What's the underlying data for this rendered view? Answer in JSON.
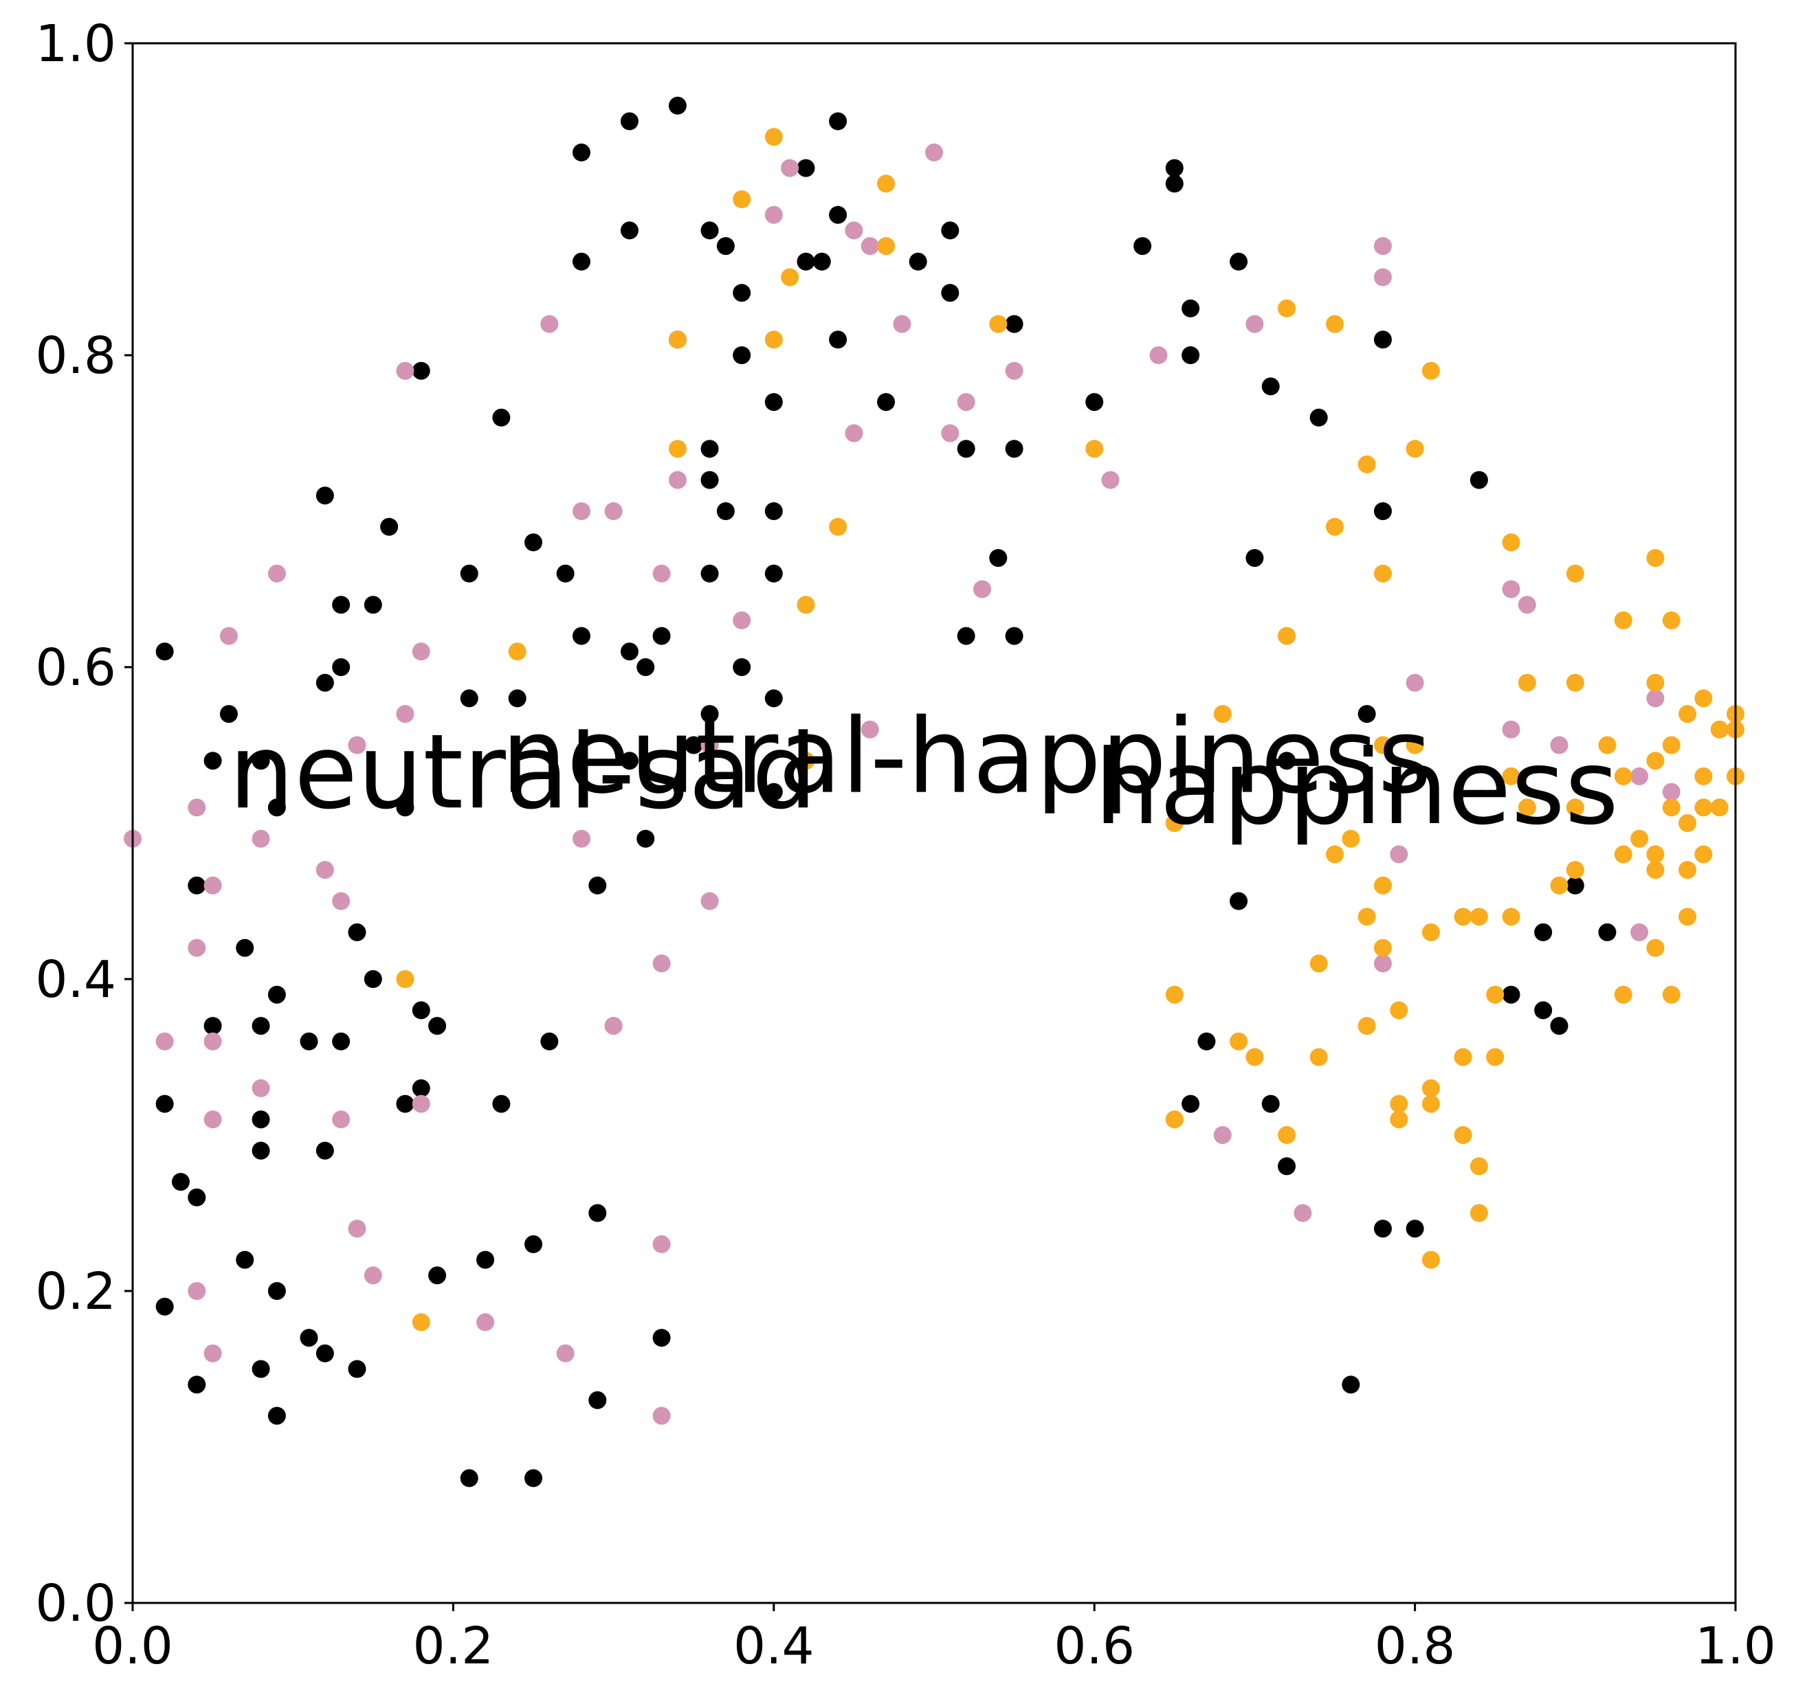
{
  "chart_data": {
    "type": "scatter",
    "title": "",
    "xlabel": "",
    "ylabel": "",
    "xlim": [
      0.0,
      1.0
    ],
    "ylim": [
      0.0,
      1.0
    ],
    "grid": false,
    "legend": "none",
    "x_ticks": [
      "0.0",
      "0.2",
      "0.4",
      "0.6",
      "0.8",
      "1.0"
    ],
    "y_ticks": [
      "0.0",
      "0.2",
      "0.4",
      "0.6",
      "0.8",
      "1.0"
    ],
    "annotations": [
      {
        "text": "neutral-sad",
        "x": 0.06,
        "y": 0.51
      },
      {
        "text": "neutral-happiness",
        "x": 0.23,
        "y": 0.52
      },
      {
        "text": "happiness",
        "x": 0.6,
        "y": 0.5
      }
    ],
    "series": [
      {
        "color": "#000000",
        "points": [
          [
            0.02,
            0.61
          ],
          [
            0.04,
            0.46
          ],
          [
            0.05,
            0.37
          ],
          [
            0.06,
            0.57
          ],
          [
            0.08,
            0.54
          ],
          [
            0.07,
            0.42
          ],
          [
            0.08,
            0.37
          ],
          [
            0.09,
            0.39
          ],
          [
            0.08,
            0.31
          ],
          [
            0.08,
            0.29
          ],
          [
            0.02,
            0.19
          ],
          [
            0.04,
            0.26
          ],
          [
            0.03,
            0.27
          ],
          [
            0.02,
            0.32
          ],
          [
            0.07,
            0.22
          ],
          [
            0.08,
            0.15
          ],
          [
            0.09,
            0.2
          ],
          [
            0.04,
            0.14
          ],
          [
            0.09,
            0.12
          ],
          [
            0.11,
            0.36
          ],
          [
            0.12,
            0.29
          ],
          [
            0.11,
            0.17
          ],
          [
            0.12,
            0.16
          ],
          [
            0.14,
            0.15
          ],
          [
            0.13,
            0.36
          ],
          [
            0.14,
            0.43
          ],
          [
            0.15,
            0.4
          ],
          [
            0.12,
            0.59
          ],
          [
            0.13,
            0.6
          ],
          [
            0.13,
            0.64
          ],
          [
            0.15,
            0.64
          ],
          [
            0.16,
            0.69
          ],
          [
            0.12,
            0.71
          ],
          [
            0.09,
            0.51
          ],
          [
            0.05,
            0.54
          ],
          [
            0.17,
            0.51
          ],
          [
            0.18,
            0.38
          ],
          [
            0.19,
            0.37
          ],
          [
            0.18,
            0.33
          ],
          [
            0.17,
            0.32
          ],
          [
            0.19,
            0.21
          ],
          [
            0.18,
            0.79
          ],
          [
            0.21,
            0.58
          ],
          [
            0.21,
            0.66
          ],
          [
            0.23,
            0.76
          ],
          [
            0.24,
            0.58
          ],
          [
            0.25,
            0.68
          ],
          [
            0.27,
            0.66
          ],
          [
            0.28,
            0.62
          ],
          [
            0.28,
            0.86
          ],
          [
            0.28,
            0.93
          ],
          [
            0.31,
            0.95
          ],
          [
            0.31,
            0.88
          ],
          [
            0.34,
            0.96
          ],
          [
            0.34,
            0.81
          ],
          [
            0.31,
            0.61
          ],
          [
            0.32,
            0.6
          ],
          [
            0.33,
            0.62
          ],
          [
            0.31,
            0.54
          ],
          [
            0.32,
            0.49
          ],
          [
            0.29,
            0.46
          ],
          [
            0.26,
            0.36
          ],
          [
            0.23,
            0.32
          ],
          [
            0.22,
            0.22
          ],
          [
            0.25,
            0.23
          ],
          [
            0.21,
            0.08
          ],
          [
            0.25,
            0.08
          ],
          [
            0.29,
            0.25
          ],
          [
            0.29,
            0.13
          ],
          [
            0.33,
            0.17
          ],
          [
            0.36,
            0.88
          ],
          [
            0.37,
            0.87
          ],
          [
            0.38,
            0.84
          ],
          [
            0.38,
            0.8
          ],
          [
            0.36,
            0.74
          ],
          [
            0.36,
            0.72
          ],
          [
            0.37,
            0.7
          ],
          [
            0.36,
            0.66
          ],
          [
            0.38,
            0.6
          ],
          [
            0.4,
            0.66
          ],
          [
            0.4,
            0.7
          ],
          [
            0.4,
            0.77
          ],
          [
            0.4,
            0.58
          ],
          [
            0.36,
            0.57
          ],
          [
            0.35,
            0.55
          ],
          [
            0.4,
            0.52
          ],
          [
            0.42,
            0.92
          ],
          [
            0.44,
            0.95
          ],
          [
            0.44,
            0.89
          ],
          [
            0.42,
            0.86
          ],
          [
            0.43,
            0.86
          ],
          [
            0.44,
            0.81
          ],
          [
            0.47,
            0.77
          ],
          [
            0.49,
            0.86
          ],
          [
            0.51,
            0.88
          ],
          [
            0.51,
            0.84
          ],
          [
            0.52,
            0.74
          ],
          [
            0.55,
            0.74
          ],
          [
            0.55,
            0.82
          ],
          [
            0.54,
            0.67
          ],
          [
            0.52,
            0.62
          ],
          [
            0.55,
            0.62
          ],
          [
            0.6,
            0.77
          ],
          [
            0.63,
            0.87
          ],
          [
            0.65,
            0.92
          ],
          [
            0.65,
            0.91
          ],
          [
            0.66,
            0.83
          ],
          [
            0.66,
            0.8
          ],
          [
            0.69,
            0.86
          ],
          [
            0.71,
            0.78
          ],
          [
            0.7,
            0.67
          ],
          [
            0.74,
            0.76
          ],
          [
            0.78,
            0.81
          ],
          [
            0.78,
            0.7
          ],
          [
            0.77,
            0.57
          ],
          [
            0.72,
            0.54
          ],
          [
            0.69,
            0.45
          ],
          [
            0.67,
            0.36
          ],
          [
            0.66,
            0.32
          ],
          [
            0.71,
            0.32
          ],
          [
            0.72,
            0.28
          ],
          [
            0.78,
            0.24
          ],
          [
            0.8,
            0.24
          ],
          [
            0.76,
            0.14
          ],
          [
            0.84,
            0.72
          ],
          [
            0.86,
            0.39
          ],
          [
            0.88,
            0.38
          ],
          [
            0.89,
            0.37
          ],
          [
            0.88,
            0.43
          ],
          [
            0.9,
            0.46
          ],
          [
            0.92,
            0.43
          ]
        ]
      },
      {
        "color": "#d394b5",
        "points": [
          [
            0.0,
            0.49
          ],
          [
            0.04,
            0.51
          ],
          [
            0.06,
            0.62
          ],
          [
            0.05,
            0.46
          ],
          [
            0.04,
            0.42
          ],
          [
            0.05,
            0.36
          ],
          [
            0.02,
            0.36
          ],
          [
            0.05,
            0.31
          ],
          [
            0.08,
            0.33
          ],
          [
            0.08,
            0.49
          ],
          [
            0.09,
            0.66
          ],
          [
            0.12,
            0.47
          ],
          [
            0.13,
            0.45
          ],
          [
            0.14,
            0.24
          ],
          [
            0.15,
            0.21
          ],
          [
            0.04,
            0.2
          ],
          [
            0.05,
            0.16
          ],
          [
            0.13,
            0.31
          ],
          [
            0.14,
            0.55
          ],
          [
            0.17,
            0.57
          ],
          [
            0.18,
            0.61
          ],
          [
            0.17,
            0.79
          ],
          [
            0.18,
            0.32
          ],
          [
            0.22,
            0.18
          ],
          [
            0.27,
            0.16
          ],
          [
            0.28,
            0.49
          ],
          [
            0.28,
            0.7
          ],
          [
            0.26,
            0.82
          ],
          [
            0.3,
            0.7
          ],
          [
            0.3,
            0.37
          ],
          [
            0.3,
            0.37
          ],
          [
            0.33,
            0.41
          ],
          [
            0.33,
            0.23
          ],
          [
            0.33,
            0.12
          ],
          [
            0.33,
            0.66
          ],
          [
            0.34,
            0.72
          ],
          [
            0.36,
            0.55
          ],
          [
            0.36,
            0.45
          ],
          [
            0.38,
            0.63
          ],
          [
            0.4,
            0.89
          ],
          [
            0.41,
            0.92
          ],
          [
            0.45,
            0.88
          ],
          [
            0.46,
            0.87
          ],
          [
            0.45,
            0.75
          ],
          [
            0.46,
            0.56
          ],
          [
            0.48,
            0.82
          ],
          [
            0.5,
            0.93
          ],
          [
            0.51,
            0.75
          ],
          [
            0.52,
            0.77
          ],
          [
            0.53,
            0.65
          ],
          [
            0.55,
            0.79
          ],
          [
            0.61,
            0.72
          ],
          [
            0.64,
            0.8
          ],
          [
            0.7,
            0.82
          ],
          [
            0.68,
            0.3
          ],
          [
            0.73,
            0.25
          ],
          [
            0.78,
            0.87
          ],
          [
            0.78,
            0.85
          ],
          [
            0.8,
            0.59
          ],
          [
            0.79,
            0.48
          ],
          [
            0.78,
            0.41
          ],
          [
            0.86,
            0.65
          ],
          [
            0.86,
            0.56
          ],
          [
            0.87,
            0.64
          ],
          [
            0.89,
            0.55
          ],
          [
            0.94,
            0.53
          ],
          [
            0.95,
            0.58
          ],
          [
            0.94,
            0.43
          ],
          [
            0.96,
            0.52
          ]
        ]
      },
      {
        "color": "#f9ac1d",
        "points": [
          [
            0.24,
            0.61
          ],
          [
            0.17,
            0.4
          ],
          [
            0.18,
            0.18
          ],
          [
            0.34,
            0.81
          ],
          [
            0.34,
            0.74
          ],
          [
            0.38,
            0.9
          ],
          [
            0.4,
            0.94
          ],
          [
            0.4,
            0.81
          ],
          [
            0.41,
            0.85
          ],
          [
            0.42,
            0.64
          ],
          [
            0.44,
            0.69
          ],
          [
            0.47,
            0.87
          ],
          [
            0.47,
            0.91
          ],
          [
            0.42,
            0.54
          ],
          [
            0.54,
            0.82
          ],
          [
            0.6,
            0.74
          ],
          [
            0.65,
            0.5
          ],
          [
            0.65,
            0.39
          ],
          [
            0.65,
            0.31
          ],
          [
            0.68,
            0.57
          ],
          [
            0.69,
            0.36
          ],
          [
            0.7,
            0.35
          ],
          [
            0.72,
            0.83
          ],
          [
            0.72,
            0.62
          ],
          [
            0.72,
            0.3
          ],
          [
            0.74,
            0.41
          ],
          [
            0.74,
            0.35
          ],
          [
            0.75,
            0.82
          ],
          [
            0.75,
            0.69
          ],
          [
            0.75,
            0.48
          ],
          [
            0.76,
            0.49
          ],
          [
            0.77,
            0.44
          ],
          [
            0.77,
            0.73
          ],
          [
            0.78,
            0.66
          ],
          [
            0.78,
            0.55
          ],
          [
            0.78,
            0.46
          ],
          [
            0.78,
            0.42
          ],
          [
            0.77,
            0.37
          ],
          [
            0.79,
            0.38
          ],
          [
            0.79,
            0.32
          ],
          [
            0.79,
            0.31
          ],
          [
            0.8,
            0.74
          ],
          [
            0.8,
            0.55
          ],
          [
            0.81,
            0.43
          ],
          [
            0.81,
            0.79
          ],
          [
            0.81,
            0.32
          ],
          [
            0.81,
            0.33
          ],
          [
            0.81,
            0.22
          ],
          [
            0.83,
            0.44
          ],
          [
            0.83,
            0.3
          ],
          [
            0.83,
            0.35
          ],
          [
            0.84,
            0.44
          ],
          [
            0.84,
            0.28
          ],
          [
            0.84,
            0.25
          ],
          [
            0.85,
            0.39
          ],
          [
            0.85,
            0.35
          ],
          [
            0.86,
            0.68
          ],
          [
            0.86,
            0.53
          ],
          [
            0.86,
            0.44
          ],
          [
            0.87,
            0.51
          ],
          [
            0.87,
            0.59
          ],
          [
            0.89,
            0.46
          ],
          [
            0.9,
            0.51
          ],
          [
            0.9,
            0.47
          ],
          [
            0.9,
            0.59
          ],
          [
            0.9,
            0.66
          ],
          [
            0.92,
            0.55
          ],
          [
            0.93,
            0.53
          ],
          [
            0.93,
            0.63
          ],
          [
            0.93,
            0.48
          ],
          [
            0.93,
            0.39
          ],
          [
            0.94,
            0.49
          ],
          [
            0.95,
            0.67
          ],
          [
            0.95,
            0.59
          ],
          [
            0.95,
            0.54
          ],
          [
            0.95,
            0.48
          ],
          [
            0.95,
            0.47
          ],
          [
            0.95,
            0.42
          ],
          [
            0.96,
            0.63
          ],
          [
            0.96,
            0.55
          ],
          [
            0.96,
            0.51
          ],
          [
            0.96,
            0.39
          ],
          [
            0.97,
            0.57
          ],
          [
            0.97,
            0.5
          ],
          [
            0.97,
            0.47
          ],
          [
            0.97,
            0.44
          ],
          [
            0.98,
            0.58
          ],
          [
            0.98,
            0.53
          ],
          [
            0.98,
            0.51
          ],
          [
            0.98,
            0.48
          ],
          [
            0.99,
            0.56
          ],
          [
            0.99,
            0.51
          ],
          [
            1.0,
            0.56
          ],
          [
            1.0,
            0.53
          ],
          [
            1.0,
            0.57
          ]
        ]
      }
    ]
  }
}
